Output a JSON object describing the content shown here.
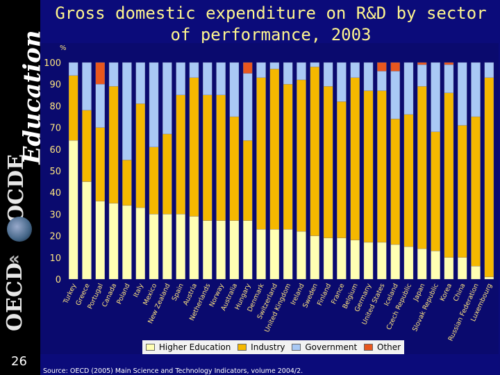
{
  "sidebar": {
    "brand_education": "Education",
    "brand_ocde": "OCDE",
    "brand_oecd": "OECD",
    "slide_number": "26"
  },
  "header": {
    "title": "Gross domestic expenditure on R&D by sector of performance, 2003"
  },
  "footer": {
    "source": "Source: OECD (2005) Main Science and Technology Indicators, volume 2004/2."
  },
  "colors": {
    "higher_education": "#ffffb3",
    "industry": "#f5b800",
    "government": "#a9c9f5",
    "other": "#e8571e",
    "axis_text": "#ffe680",
    "background": "#0b0b7a"
  },
  "chart_data": {
    "type": "bar",
    "stacked": true,
    "title": "Gross domestic expenditure on R&D by sector of performance, 2003",
    "ylabel": "%",
    "ylim": [
      0,
      100
    ],
    "yticks": [
      0,
      10,
      20,
      30,
      40,
      50,
      60,
      70,
      80,
      90,
      100
    ],
    "categories": [
      "Turkey",
      "Greece",
      "Portugal",
      "Canada",
      "Poland",
      "Italy",
      "Mexico",
      "New Zealand",
      "Spain",
      "Austria",
      "Netherlands",
      "Norway",
      "Australia",
      "Hungary",
      "Denmark",
      "Switzerland",
      "United Kingdom",
      "Ireland",
      "Sweden",
      "Finland",
      "France",
      "Belgium",
      "Germany",
      "United States",
      "Iceland",
      "Czech Republic",
      "Japan",
      "Slovak Republic",
      "Korea",
      "China",
      "Russian Federation",
      "Luxembourg"
    ],
    "series": [
      {
        "name": "Higher Education",
        "values": [
          64,
          45,
          36,
          35,
          34,
          33,
          30,
          30,
          30,
          29,
          27,
          27,
          27,
          27,
          23,
          23,
          23,
          22,
          20,
          19,
          19,
          18,
          17,
          17,
          16,
          15,
          14,
          13,
          10,
          10,
          6,
          1
        ]
      },
      {
        "name": "Industry",
        "values": [
          30,
          33,
          34,
          54,
          21,
          48,
          31,
          37,
          55,
          64,
          58,
          58,
          48,
          37,
          70,
          74,
          67,
          70,
          78,
          70,
          63,
          75,
          70,
          70,
          58,
          61,
          75,
          55,
          76,
          61,
          69,
          92
        ]
      },
      {
        "name": "Government",
        "values": [
          6,
          22,
          20,
          11,
          45,
          19,
          39,
          33,
          15,
          7,
          15,
          15,
          25,
          31,
          7,
          3,
          10,
          8,
          2,
          11,
          18,
          7,
          13,
          9,
          22,
          24,
          10,
          32,
          13,
          29,
          25,
          7
        ]
      },
      {
        "name": "Other",
        "values": [
          0,
          0,
          10,
          0,
          0,
          0,
          0,
          0,
          0,
          0,
          0,
          0,
          0,
          5,
          0,
          0,
          0,
          0,
          0,
          0,
          0,
          0,
          0,
          4,
          4,
          0,
          1,
          0,
          1,
          0,
          0,
          0
        ]
      }
    ],
    "legend": [
      "Higher Education",
      "Industry",
      "Government",
      "Other"
    ],
    "legend_position": "bottom"
  }
}
